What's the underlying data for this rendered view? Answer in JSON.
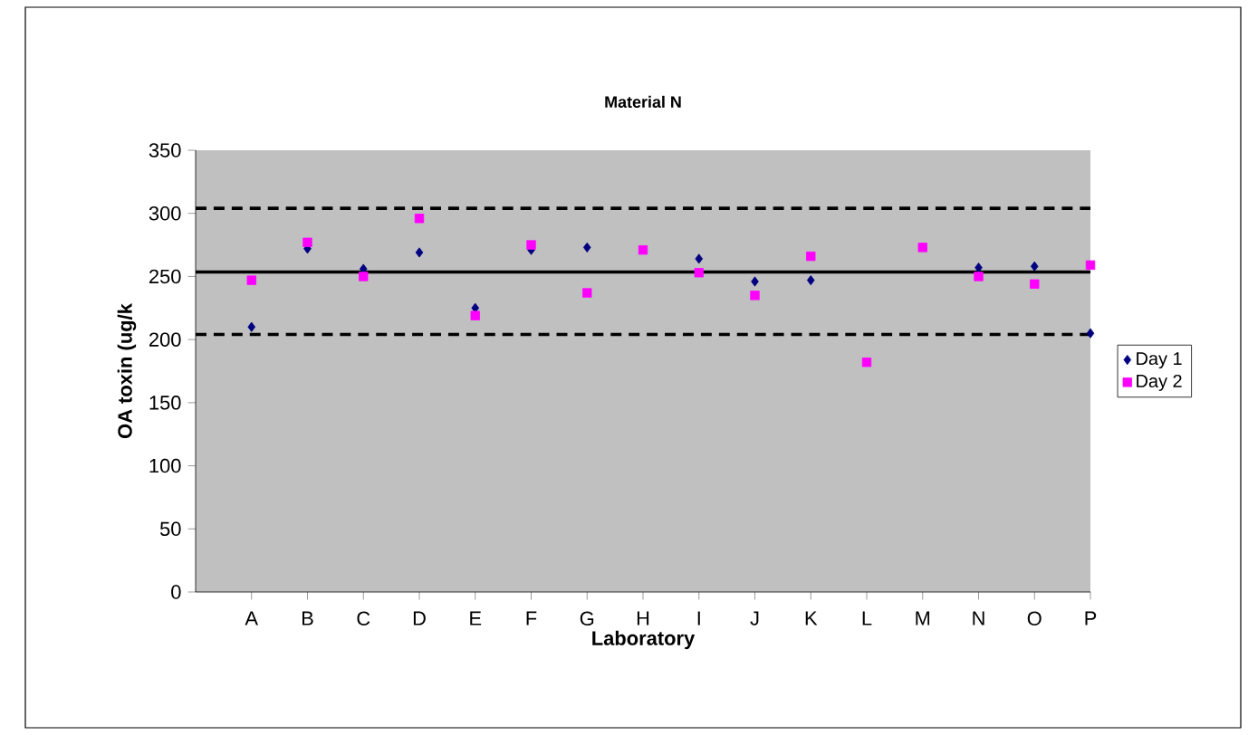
{
  "chart_data": {
    "type": "scatter",
    "title": "Material N",
    "xlabel": "Laboratory",
    "ylabel": "OA toxin (ug/k",
    "categories": [
      "A",
      "B",
      "C",
      "D",
      "E",
      "F",
      "G",
      "H",
      "I",
      "J",
      "K",
      "L",
      "M",
      "N",
      "O",
      "P"
    ],
    "series": [
      {
        "name": "Day 1",
        "color": "#000080",
        "marker": "diamond",
        "values": [
          210,
          272,
          256,
          269,
          225,
          271,
          273,
          null,
          264,
          246,
          247,
          null,
          null,
          257,
          258,
          205
        ]
      },
      {
        "name": "Day 2",
        "color": "#ff00ff",
        "marker": "square",
        "values": [
          247,
          277,
          250,
          296,
          219,
          275,
          237,
          271,
          253,
          235,
          266,
          182,
          273,
          250,
          244,
          259
        ]
      }
    ],
    "ylim": [
      0,
      350
    ],
    "yticks": [
      0,
      50,
      100,
      150,
      200,
      250,
      300,
      350
    ],
    "ref_lines": [
      {
        "axis": "y",
        "value": 304,
        "line_style": "dashed",
        "color": "#000000"
      },
      {
        "axis": "y",
        "value": 253.5,
        "line_style": "solid",
        "color": "#000000"
      },
      {
        "axis": "y",
        "value": 204,
        "line_style": "dashed",
        "color": "#000000"
      }
    ],
    "legend": "right",
    "grid": false
  }
}
